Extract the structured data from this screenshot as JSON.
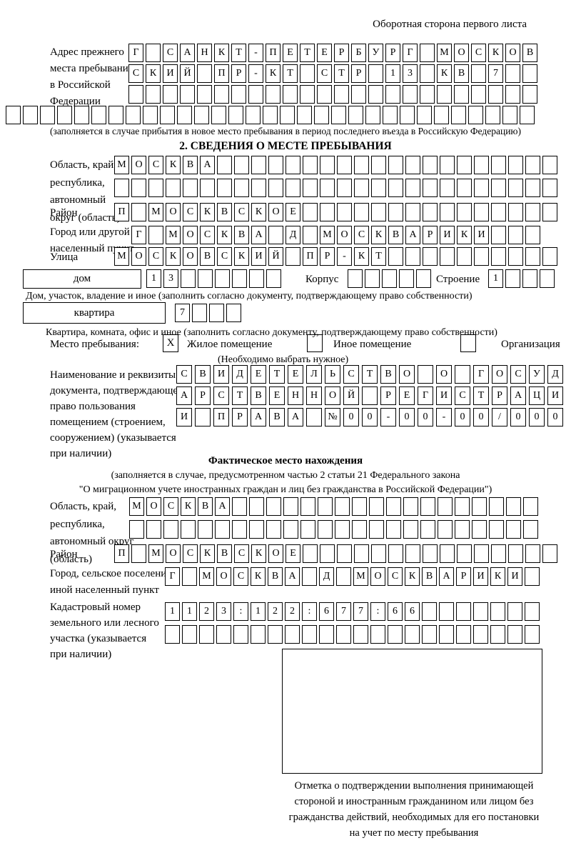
{
  "page": {
    "header_note": "Оборотная сторона первого листа"
  },
  "prev_address": {
    "label": "Адрес прежнего\nместа пребывания\nв Российской\nФедерации",
    "row1": "Г САНКТ-ПЕТЕРБУРГ МОСКОВ",
    "row2": "СКИЙ ПР-КТ СТР 13 КВ 7",
    "row3": "",
    "row4": "",
    "note": "(заполняется в случае прибытия в новое место пребывания в период последнего въезда в Российскую Федерацию)"
  },
  "section2": {
    "title": "2. СВЕДЕНИЯ О МЕСТЕ ПРЕБЫВАНИЯ",
    "oblast": {
      "label": "Область, край,\nреспублика,\nавтономный\nокруг (область)",
      "row1": "МОСКВА",
      "row2": ""
    },
    "raion": {
      "label": "Район",
      "row": "П МОСКВСКОЕ"
    },
    "gorod": {
      "label": "Город или другой\nнаселенный пункт",
      "row": "Г МОСКВА Д МОСКВАРИКИ"
    },
    "ulitsa": {
      "label": "Улица",
      "row": "МОСКОВСКИЙ ПР-КТ"
    },
    "dom": {
      "box_label": "дом",
      "cells": "13"
    },
    "korpus": {
      "label": "Корпус",
      "cells": ""
    },
    "stroenie": {
      "label": "Строение",
      "cells": "1"
    },
    "dom_note": "Дом, участок, владение и иное (заполнить согласно документу, подтверждающему право собственности)",
    "kvartira": {
      "box_label": "квартира",
      "cells": "7"
    },
    "kvartira_note": "Квартира, комната, офис и иное (заполнить согласно документу, подтверждающему право собственности)",
    "mesto": {
      "label": "Место пребывания:",
      "options": [
        {
          "mark": "X",
          "label": "Жилое помещение"
        },
        {
          "mark": "",
          "label": "Иное помещение"
        },
        {
          "mark": "",
          "label": "Организация"
        }
      ],
      "note": "(Необходимо выбрать нужное)"
    },
    "document": {
      "label": "Наименование и реквизиты\nдокумента, подтверждающего\nправо пользования\nпомещением (строением,\nсооружением) (указывается\nпри наличии)",
      "row1": "СВИДЕТЕЛЬСТВО О ГОСУД",
      "row2": "АРСТВЕННОЙ РЕГИСТРАЦИ",
      "row3": "И ПРАВА №00-00-00/000"
    }
  },
  "factual": {
    "title": "Фактическое место нахождения",
    "note1": "(заполняется в случае, предусмотренном частью 2 статьи 21 Федерального закона",
    "note2": "\"О миграционном учете иностранных граждан и лиц без гражданства в Российской Федерации\")",
    "oblast": {
      "label": "Область, край,\nреспублика,\nавтономный округ\n(область)",
      "row1": "МОСКВА",
      "row2": ""
    },
    "raion": {
      "label": "Район",
      "row": "П МОСКВСКОЕ"
    },
    "gorod": {
      "label": "Город, сельское поселение,\nиной населенный пункт",
      "row": "Г МОСКВА Д МОСКВАРИКИ"
    },
    "kadastr": {
      "label": "Кадастровый номер\nземельного или лесного\nучастка (указывается\nпри наличии)",
      "row1": "1123:122:677:66",
      "row2": ""
    },
    "stamp_caption": "Отметка о подтверждении выполнения принимающей\nстороной и иностранным гражданином или лицом без\nгражданства действий, необходимых для его постановки\nна учет по месту пребывания"
  }
}
